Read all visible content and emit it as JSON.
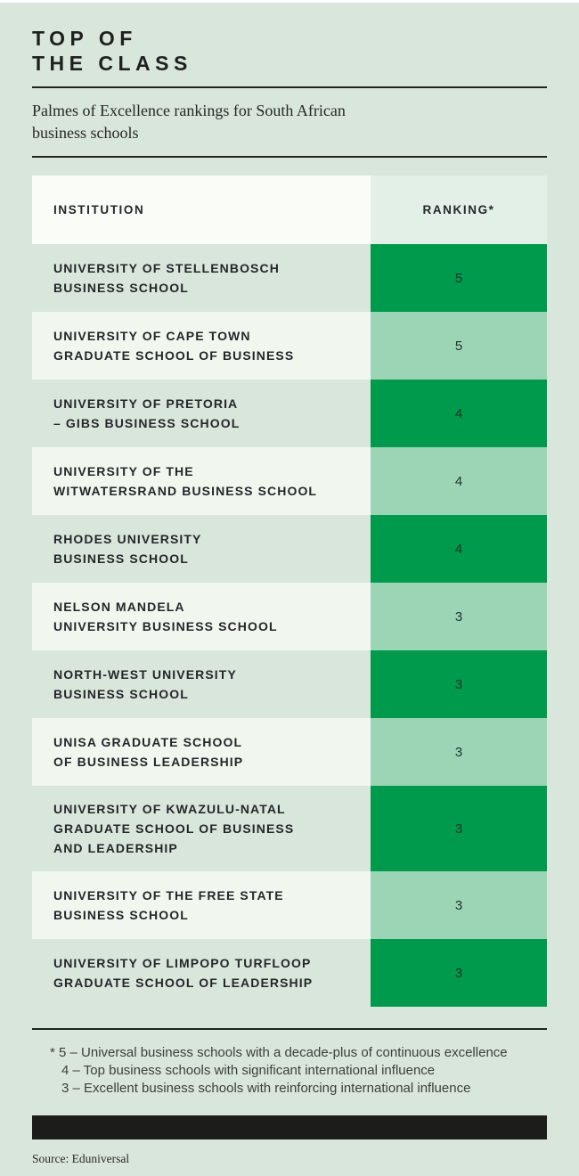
{
  "header": {
    "title_lines": [
      "TOP OF",
      "THE CLASS"
    ],
    "subtitle": "Palmes of Excellence rankings for South African\nbusiness schools"
  },
  "table": {
    "columns": {
      "institution": "INSTITUTION",
      "ranking": "RANKING*"
    },
    "rows": [
      {
        "institution": "UNIVERSITY OF STELLENBOSCH\nBUSINESS SCHOOL",
        "ranking": "5"
      },
      {
        "institution": "UNIVERSITY OF CAPE TOWN\nGRADUATE SCHOOL OF BUSINESS",
        "ranking": "5"
      },
      {
        "institution": "UNIVERSITY OF PRETORIA\n– GIBS BUSINESS SCHOOL",
        "ranking": "4"
      },
      {
        "institution": "UNIVERSITY OF THE\nWITWATERSRAND BUSINESS SCHOOL",
        "ranking": "4"
      },
      {
        "institution": "RHODES UNIVERSITY\nBUSINESS SCHOOL",
        "ranking": "4"
      },
      {
        "institution": "NELSON MANDELA\nUNIVERSITY BUSINESS SCHOOL",
        "ranking": "3"
      },
      {
        "institution": "NORTH-WEST UNIVERSITY\nBUSINESS SCHOOL",
        "ranking": "3"
      },
      {
        "institution": "UNISA GRADUATE SCHOOL\nOF BUSINESS LEADERSHIP",
        "ranking": "3"
      },
      {
        "institution": "UNIVERSITY OF KWAZULU-NATAL\nGRADUATE SCHOOL OF BUSINESS\nAND LEADERSHIP",
        "ranking": "3"
      },
      {
        "institution": "UNIVERSITY OF THE FREE STATE\nBUSINESS SCHOOL",
        "ranking": "3"
      },
      {
        "institution": "UNIVERSITY OF LIMPOPO TURFLOOP\nGRADUATE SCHOOL OF LEADERSHIP",
        "ranking": "3"
      }
    ]
  },
  "footnotes": [
    "* 5 – Universal business schools with a decade-plus of continuous excellence",
    "4 – Top business schools with significant international influence",
    "3 – Excellent business schools with reinforcing international influence"
  ],
  "source": "Source: Eduniversal",
  "colors": {
    "page_background": "#d9e6dc",
    "ranking_dark_green": "#009a4d",
    "ranking_light_green": "#9cd5b6",
    "header_institution_cell": "#fafcf7",
    "header_ranking_cell": "#e3f0e8",
    "even_row_institution_cell": "#f1f6ef",
    "footer_bar": "#1c1c1a",
    "text": "#212421"
  },
  "chart_data": {
    "type": "table",
    "title": "TOP OF THE CLASS",
    "subtitle": "Palmes of Excellence rankings for South African business schools",
    "columns": [
      "INSTITUTION",
      "RANKING*"
    ],
    "rows": [
      [
        "UNIVERSITY OF STELLENBOSCH BUSINESS SCHOOL",
        5
      ],
      [
        "UNIVERSITY OF CAPE TOWN GRADUATE SCHOOL OF BUSINESS",
        5
      ],
      [
        "UNIVERSITY OF PRETORIA – GIBS BUSINESS SCHOOL",
        4
      ],
      [
        "UNIVERSITY OF THE WITWATERSRAND BUSINESS SCHOOL",
        4
      ],
      [
        "RHODES UNIVERSITY BUSINESS SCHOOL",
        4
      ],
      [
        "NELSON MANDELA UNIVERSITY BUSINESS SCHOOL",
        3
      ],
      [
        "NORTH-WEST UNIVERSITY BUSINESS SCHOOL",
        3
      ],
      [
        "UNISA GRADUATE SCHOOL OF BUSINESS LEADERSHIP",
        3
      ],
      [
        "UNIVERSITY OF KWAZULU-NATAL GRADUATE SCHOOL OF BUSINESS AND LEADERSHIP",
        3
      ],
      [
        "UNIVERSITY OF THE FREE STATE BUSINESS SCHOOL",
        3
      ],
      [
        "UNIVERSITY OF LIMPOPO TURFLOOP GRADUATE SCHOOL OF LEADERSHIP",
        3
      ]
    ],
    "ranking_scale_notes": {
      "5": "Universal business schools with a decade-plus of continuous excellence",
      "4": "Top business schools with significant international influence",
      "3": "Excellent business schools with reinforcing international influence"
    },
    "source": "Eduniversal"
  }
}
